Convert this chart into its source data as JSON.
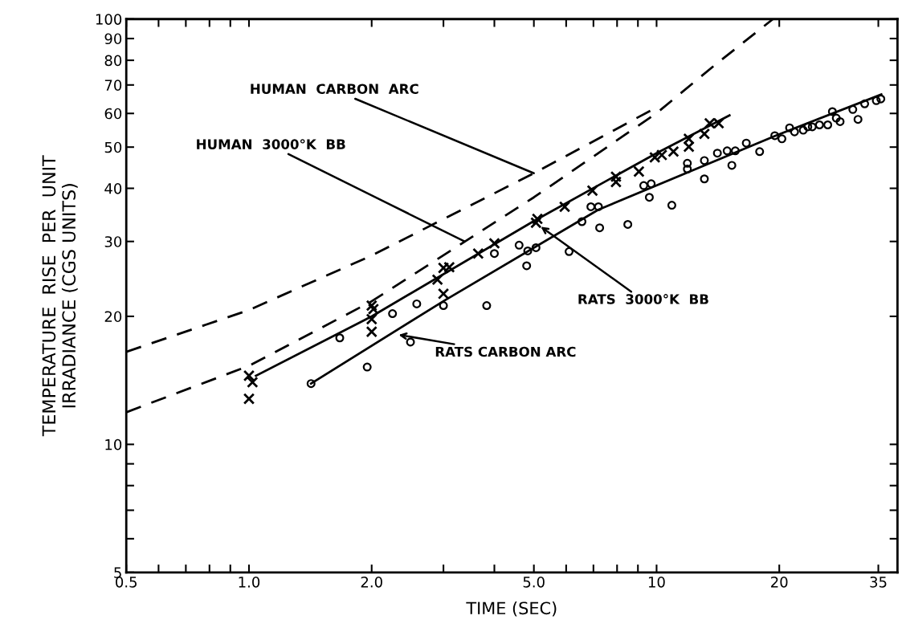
{
  "chart_data": {
    "type": "line",
    "xlabel": "TIME (SEC)",
    "ylabel": "TEMPERATURE  RISE  PER  UNIT\nIRRADIANCE (CGS UNITS)",
    "log": "xy",
    "grid": false,
    "xlim": [
      0.5,
      39
    ],
    "ylim": [
      5,
      100
    ],
    "xticks": [
      0.5,
      {
        "value": 0.6,
        "label": null
      },
      {
        "value": 0.7,
        "label": null
      },
      {
        "value": 0.8,
        "label": null
      },
      {
        "value": 0.9,
        "label": null
      },
      {
        "value": 1.0,
        "label": "1.0"
      },
      {
        "value": 2.0,
        "label": "2.0"
      },
      {
        "value": 3,
        "label": null
      },
      {
        "value": 4,
        "label": null
      },
      {
        "value": 5.0,
        "label": "5.0"
      },
      {
        "value": 6,
        "label": null
      },
      {
        "value": 7,
        "label": null
      },
      {
        "value": 8,
        "label": null
      },
      {
        "value": 9,
        "label": null
      },
      10,
      20,
      35
    ],
    "yticks": [
      5,
      {
        "value": 6,
        "label": null
      },
      {
        "value": 7,
        "label": null
      },
      {
        "value": 8,
        "label": null
      },
      {
        "value": 9,
        "label": null
      },
      10,
      20,
      30,
      40,
      50,
      60,
      70,
      80,
      90,
      100
    ],
    "series": [
      {
        "line_style": "dashed",
        "marker": "none",
        "color": "#000000",
        "x": [
          0.5,
          1.0,
          2.0,
          5.0,
          10
        ],
        "values": [
          16.5,
          20.7,
          27.8,
          43.4,
          62
        ]
      },
      {
        "line_style": "dashed",
        "marker": "none",
        "color": "#000000",
        "x": [
          0.5,
          1.0,
          2.0,
          5.0,
          10,
          14,
          19.3
        ],
        "values": [
          11.9,
          15.3,
          21.7,
          38.1,
          60.1,
          78.4,
          100
        ]
      },
      {
        "line_style": "solid",
        "marker": "none",
        "color": "#000000",
        "x": [
          1.04,
          2.0,
          5.0,
          10,
          15.1
        ],
        "values": [
          14.5,
          20,
          33.5,
          48.4,
          59.4
        ]
      },
      {
        "line_style": "solid",
        "marker": "none",
        "color": "#000000",
        "x": [
          1.42,
          3.02,
          7.19,
          19.7,
          35.6
        ],
        "values": [
          13.9,
          21.8,
          35.6,
          53.3,
          66.5
        ]
      },
      {
        "type": "scatter",
        "marker": "cross",
        "color": "#000000",
        "x": [
          1.0,
          1.02,
          1.0,
          2.0,
          2.02,
          2.0,
          2.0,
          2.9,
          3.0,
          3.1,
          3.0,
          3.65,
          4.0,
          5.06,
          5.1,
          5.95,
          6.96,
          7.95,
          7.95,
          9.05,
          9.9,
          10.3,
          11.0,
          12.0,
          12.0,
          13.1,
          13.5,
          14.2
        ],
        "values": [
          14.5,
          14.0,
          12.8,
          21.2,
          20.8,
          18.4,
          19.7,
          24.4,
          26.0,
          26.1,
          22.6,
          28.1,
          29.7,
          33.2,
          33.9,
          36.2,
          39.5,
          42.6,
          41.4,
          43.8,
          47.3,
          47.9,
          48.8,
          52.3,
          50.1,
          53.7,
          56.9,
          56.9
        ]
      },
      {
        "type": "scatter",
        "marker": "circle",
        "color": "#000000",
        "x": [
          1.42,
          1.95,
          1.67,
          2.25,
          2.58,
          2.49,
          3.0,
          3.83,
          4.0,
          4.6,
          4.8,
          4.83,
          5.06,
          6.1,
          6.56,
          6.9,
          7.2,
          7.25,
          8.5,
          9.3,
          9.7,
          9.6,
          10.9,
          11.9,
          11.9,
          13.1,
          13.1,
          14.1,
          14.9,
          15.3,
          15.6,
          16.6,
          17.9,
          19.5,
          20.3,
          21.2,
          21.8,
          22.9,
          23.5,
          24.1,
          25.1,
          26.3,
          27.0,
          27.6,
          28.2,
          30.3,
          31.2,
          32.4,
          34.6,
          35.5
        ],
        "values": [
          13.9,
          15.2,
          17.8,
          20.3,
          21.4,
          17.4,
          21.2,
          21.2,
          28.1,
          29.4,
          26.3,
          28.5,
          29.0,
          28.4,
          33.4,
          36.2,
          36.2,
          32.3,
          32.9,
          40.6,
          41.0,
          38.1,
          36.5,
          45.8,
          44.4,
          46.5,
          42.1,
          48.4,
          49.0,
          45.3,
          49.0,
          51.1,
          48.8,
          53.2,
          52.3,
          55.5,
          54.3,
          54.8,
          55.8,
          55.8,
          56.4,
          56.4,
          60.6,
          58.5,
          57.4,
          61.3,
          58.1,
          63.2,
          64.3,
          64.9
        ]
      }
    ],
    "annotations": [
      {
        "text": "HUMAN  CARBON  ARC",
        "x": 5.0,
        "y": 43.4
      },
      {
        "text": "HUMAN  3000°K  BB",
        "x": 3.38,
        "y": 30.0
      },
      {
        "text": "RATS  3000°K  BB",
        "x": 5.2,
        "y": 32.5
      },
      {
        "text": "RATS CARBON ARC",
        "x": 2.33,
        "y": 18.1
      }
    ]
  }
}
